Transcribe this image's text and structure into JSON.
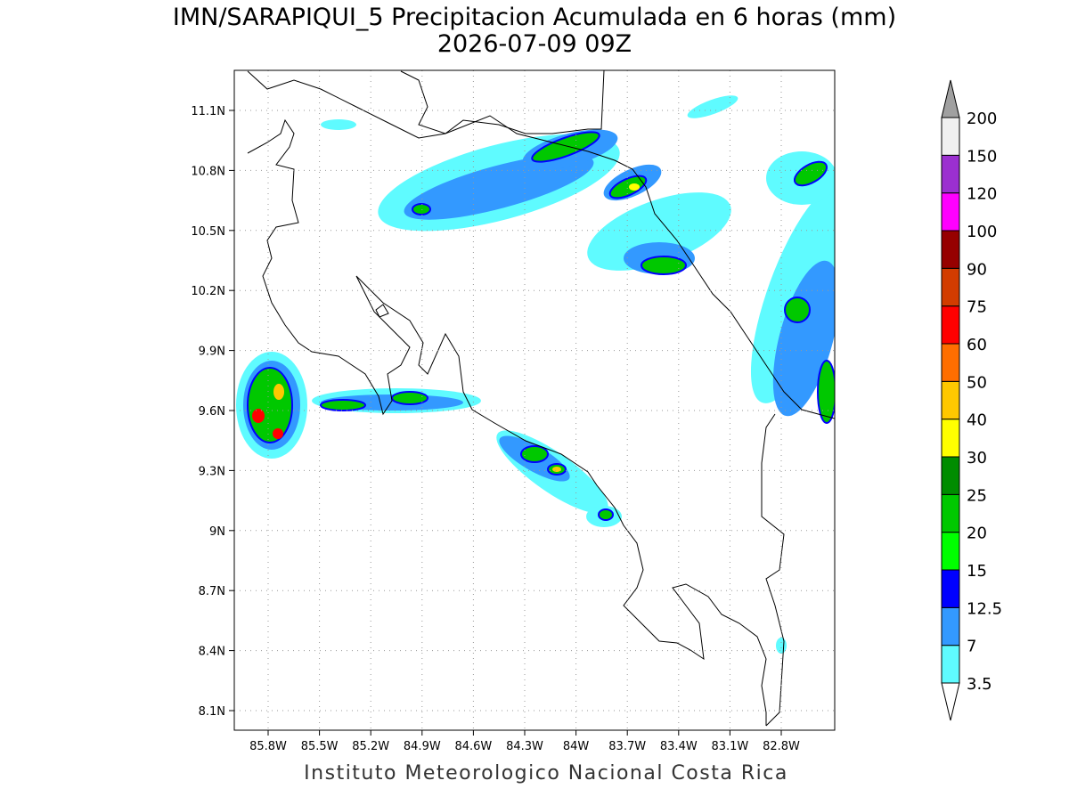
{
  "header": {
    "title": "IMN/SARAPIQUI_5 Precipitacion Acumulada en 6 horas (mm)",
    "subtitle": "2026-07-09 09Z"
  },
  "map": {
    "lat_ticks": [
      {
        "value": 11.1,
        "label": "11.1N"
      },
      {
        "value": 10.8,
        "label": "10.8N"
      },
      {
        "value": 10.5,
        "label": "10.5N"
      },
      {
        "value": 10.2,
        "label": "10.2N"
      },
      {
        "value": 9.9,
        "label": "9.9N"
      },
      {
        "value": 9.6,
        "label": "9.6N"
      },
      {
        "value": 9.3,
        "label": "9.3N"
      },
      {
        "value": 9,
        "label": "9N"
      },
      {
        "value": 8.7,
        "label": "8.7N"
      },
      {
        "value": 8.4,
        "label": "8.4N"
      },
      {
        "value": 8.1,
        "label": "8.1N"
      }
    ],
    "lon_ticks": [
      {
        "value": -85.8,
        "label": "85.8W"
      },
      {
        "value": -85.5,
        "label": "85.5W"
      },
      {
        "value": -85.2,
        "label": "85.2W"
      },
      {
        "value": -84.9,
        "label": "84.9W"
      },
      {
        "value": -84.6,
        "label": "84.6W"
      },
      {
        "value": -84.3,
        "label": "84.3W"
      },
      {
        "value": -84,
        "label": "84W"
      },
      {
        "value": -83.7,
        "label": "83.7W"
      },
      {
        "value": -83.4,
        "label": "83.4W"
      },
      {
        "value": -83.1,
        "label": "83.1W"
      },
      {
        "value": -82.8,
        "label": "82.8W"
      }
    ]
  },
  "colorbar": {
    "levels": [
      3.5,
      7,
      12.5,
      15,
      20,
      25,
      30,
      40,
      50,
      60,
      75,
      90,
      100,
      120,
      150,
      200
    ],
    "colors": [
      "#ffffff",
      "#5ffbff",
      "#3399ff",
      "#0000ff",
      "#00ff00",
      "#00c800",
      "#008c00",
      "#ffff00",
      "#ffc800",
      "#ff6e00",
      "#ff0000",
      "#d23c00",
      "#960000",
      "#ff00ff",
      "#9b30d0",
      "#f0f0f0",
      "#a0a0a0"
    ]
  },
  "footer": {
    "text": "Instituto Meteorologico Nacional Costa Rica"
  }
}
